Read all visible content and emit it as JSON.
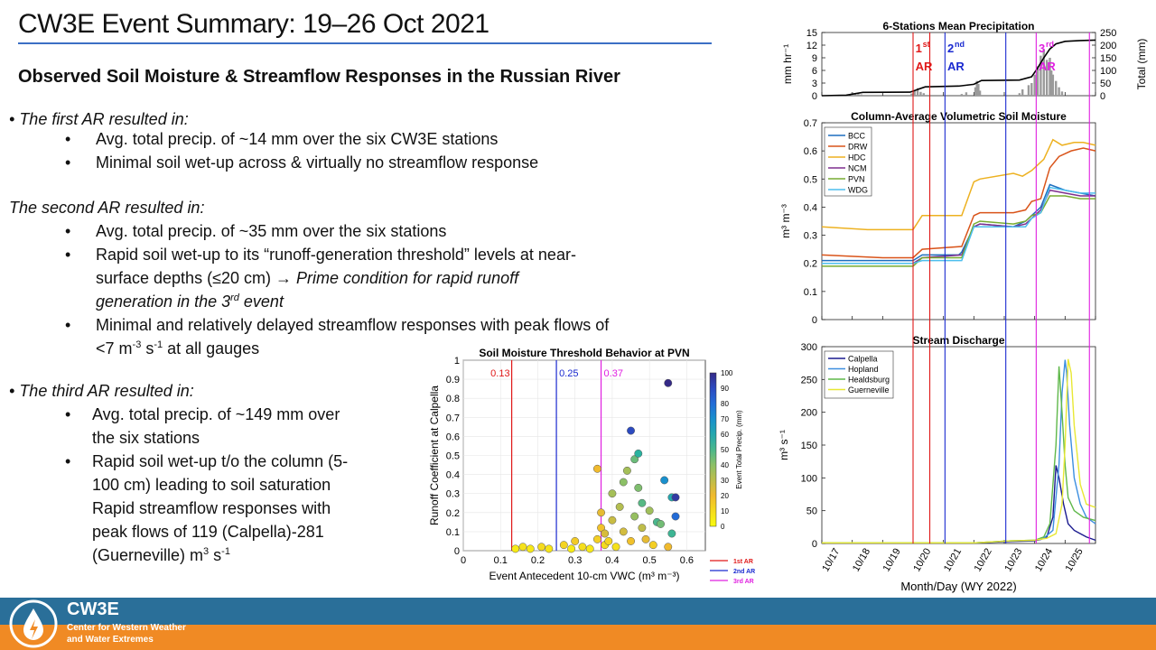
{
  "slide": {
    "title": "CW3E Event Summary: 19–26 Oct 2021",
    "subtitle": "Observed Soil Moisture & Streamflow Responses in the Russian River"
  },
  "bullets": {
    "first": {
      "head": "The first AR resulted in:",
      "items": [
        "Avg. total precip. of ~14 mm over the six CW3E stations",
        "Minimal soil wet-up across & virtually no streamflow response"
      ]
    },
    "second": {
      "head": "The second AR resulted in:",
      "item1": "Avg. total precip. of ~35 mm over the six stations",
      "item2_a": "Rapid soil wet-up to its “runoff-generation threshold” levels at near-",
      "item2_b": "surface depths (≤20 cm) → ",
      "item2_c": "Prime condition for rapid runoff",
      "item2_d": "generation in the 3",
      "item2_sup": "rd",
      "item2_e": " event",
      "item3_a": "Minimal and relatively delayed streamflow responses with peak flows of",
      "item3_b": "<7 m",
      "item3_sup1": "-3",
      "item3_c": " s",
      "item3_sup2": "-1",
      "item3_d": " at all gauges"
    },
    "third": {
      "head": "The third AR resulted in:",
      "item1_a": "Avg. total precip. of ~149 mm over",
      "item1_b": "the six stations",
      "item2_a": "Rapid soil wet-up t/o the column (5-",
      "item2_b": "100 cm) leading to soil saturation",
      "item2_c": "Rapid streamflow responses with",
      "item2_d": "peak flows of 119 (Calpella)-281",
      "item2_e": "(Guerneville) m",
      "item2_sup": "3",
      "item2_f": " s",
      "item2_sup2": "-1"
    }
  },
  "colors": {
    "ar1": "#e01818",
    "ar2": "#1a2ad0",
    "ar3": "#e020e0"
  },
  "ar_labels": {
    "ar1_num": "1",
    "ar1_sup": "st",
    "ar2_num": "2",
    "ar2_sup": "nd",
    "ar3_num": "3",
    "ar3_sup": "rd",
    "ar": "AR"
  },
  "chart_data": [
    {
      "type": "area",
      "title": "6-Stations Mean Precipitation",
      "ylabel": "mm hr⁻¹",
      "y2label": "Total (mm)",
      "ylim": [
        0,
        15
      ],
      "yticks": [
        "0",
        "3",
        "6",
        "9",
        "12",
        "15"
      ],
      "y2lim": [
        0,
        250
      ],
      "y2ticks": [
        "0",
        "50",
        "100",
        "150",
        "200",
        "250"
      ],
      "xlim": [
        0,
        9
      ],
      "bars": [
        [
          0.85,
          0.3
        ],
        [
          1.0,
          0.8
        ],
        [
          1.1,
          0.6
        ],
        [
          1.2,
          0.4
        ],
        [
          1.3,
          0.3
        ],
        [
          2.95,
          0.5
        ],
        [
          3.05,
          1.3
        ],
        [
          3.15,
          1.8
        ],
        [
          3.25,
          0.9
        ],
        [
          3.35,
          0.6
        ],
        [
          4.6,
          0.4
        ],
        [
          4.75,
          0.8
        ],
        [
          5.05,
          2.0
        ],
        [
          5.1,
          3.5
        ],
        [
          5.15,
          2.8
        ],
        [
          5.2,
          1.2
        ],
        [
          6.5,
          0.6
        ],
        [
          6.6,
          1.5
        ],
        [
          6.8,
          2.5
        ],
        [
          6.9,
          3.0
        ],
        [
          7.0,
          5.0
        ],
        [
          7.1,
          7.0
        ],
        [
          7.2,
          9.5
        ],
        [
          7.3,
          11.0
        ],
        [
          7.4,
          8.5
        ],
        [
          7.5,
          9.0
        ],
        [
          7.55,
          6.0
        ],
        [
          7.6,
          5.0
        ],
        [
          7.7,
          3.5
        ],
        [
          7.8,
          2.0
        ],
        [
          7.9,
          1.0
        ]
      ],
      "total_x": [
        0,
        0.8,
        1.35,
        2.9,
        3.4,
        4.5,
        5.0,
        5.25,
        6.5,
        6.9,
        7.1,
        7.3,
        7.5,
        7.7,
        8.0,
        8.5,
        9.0
      ],
      "total_y": [
        0,
        2,
        13,
        14,
        35,
        38,
        45,
        60,
        62,
        75,
        110,
        150,
        185,
        205,
        215,
        218,
        220
      ]
    },
    {
      "type": "line",
      "title": "Column-Average Volumetric Soil Moisture",
      "ylabel": "m³ m⁻³",
      "ylim": [
        0,
        0.7
      ],
      "yticks": [
        "0",
        "0.1",
        "0.2",
        "0.3",
        "0.4",
        "0.5",
        "0.6",
        "0.7"
      ],
      "xlim": [
        0,
        9
      ],
      "series": [
        {
          "name": "BCC",
          "color": "#1f6fbf",
          "x": [
            0,
            3.0,
            3.3,
            4.5,
            4.6,
            5.0,
            5.2,
            6.3,
            6.7,
            6.9,
            7.2,
            7.5,
            8.0,
            8.5,
            9.0
          ],
          "y": [
            0.21,
            0.21,
            0.23,
            0.23,
            0.24,
            0.33,
            0.34,
            0.33,
            0.35,
            0.37,
            0.4,
            0.48,
            0.46,
            0.45,
            0.44
          ]
        },
        {
          "name": "DRW",
          "color": "#d9541a",
          "x": [
            0,
            2.0,
            3.0,
            3.3,
            4.6,
            5.0,
            5.2,
            6.3,
            6.7,
            6.9,
            7.2,
            7.5,
            7.8,
            8.2,
            8.6,
            9.0
          ],
          "y": [
            0.23,
            0.22,
            0.22,
            0.25,
            0.26,
            0.37,
            0.38,
            0.38,
            0.39,
            0.42,
            0.43,
            0.54,
            0.58,
            0.6,
            0.61,
            0.6
          ]
        },
        {
          "name": "HDC",
          "color": "#edb120",
          "x": [
            0,
            1.5,
            3.0,
            3.3,
            4.6,
            5.0,
            5.2,
            6.3,
            6.6,
            6.9,
            7.3,
            7.6,
            7.9,
            8.3,
            8.6,
            9.0
          ],
          "y": [
            0.33,
            0.32,
            0.32,
            0.37,
            0.37,
            0.49,
            0.5,
            0.52,
            0.51,
            0.53,
            0.57,
            0.64,
            0.62,
            0.63,
            0.63,
            0.62
          ]
        },
        {
          "name": "NCM",
          "color": "#7e2f8e",
          "x": [
            0,
            3.0,
            3.3,
            4.6,
            5.0,
            5.2,
            6.3,
            6.7,
            6.9,
            7.2,
            7.5,
            8.0,
            8.5,
            9.0
          ],
          "y": [
            0.2,
            0.2,
            0.22,
            0.23,
            0.33,
            0.34,
            0.33,
            0.34,
            0.36,
            0.39,
            0.46,
            0.45,
            0.44,
            0.44
          ]
        },
        {
          "name": "PVN",
          "color": "#77ac30",
          "x": [
            0,
            3.0,
            3.3,
            4.6,
            5.0,
            5.2,
            6.3,
            6.7,
            6.9,
            7.2,
            7.5,
            8.0,
            8.5,
            9.0
          ],
          "y": [
            0.19,
            0.19,
            0.22,
            0.22,
            0.34,
            0.35,
            0.34,
            0.35,
            0.37,
            0.38,
            0.44,
            0.44,
            0.43,
            0.43
          ]
        },
        {
          "name": "WDG",
          "color": "#4dbeee",
          "x": [
            0,
            3.0,
            3.3,
            4.6,
            5.0,
            5.2,
            6.3,
            6.7,
            6.9,
            7.2,
            7.5,
            8.0,
            8.5,
            9.0
          ],
          "y": [
            0.2,
            0.2,
            0.21,
            0.21,
            0.33,
            0.33,
            0.33,
            0.33,
            0.36,
            0.38,
            0.47,
            0.46,
            0.45,
            0.45
          ]
        }
      ]
    },
    {
      "type": "line",
      "title": "Stream Discharge",
      "ylabel": "m³ s⁻¹",
      "xlabel": "Month/Day (WY 2022)",
      "ylim": [
        0,
        300
      ],
      "yticks": [
        "0",
        "50",
        "100",
        "150",
        "200",
        "250",
        "300"
      ],
      "xlim": [
        0,
        9
      ],
      "xticks": [
        "10/17",
        "10/18",
        "10/19",
        "10/20",
        "10/21",
        "10/22",
        "10/23",
        "10/24",
        "10/25"
      ],
      "series": [
        {
          "name": "Calpella",
          "color": "#1a1a8f",
          "x": [
            0,
            5.0,
            6.2,
            7.0,
            7.2,
            7.4,
            7.6,
            7.7,
            7.8,
            7.95,
            8.1,
            8.3,
            8.5,
            8.7,
            9.0
          ],
          "y": [
            1,
            1,
            3,
            4,
            6,
            10,
            40,
            119,
            100,
            60,
            30,
            20,
            15,
            10,
            5
          ]
        },
        {
          "name": "Hopland",
          "color": "#3d8fe0",
          "x": [
            0,
            5.0,
            6.2,
            7.0,
            7.3,
            7.6,
            7.8,
            7.9,
            8.0,
            8.05,
            8.15,
            8.3,
            8.5,
            8.7,
            9.0
          ],
          "y": [
            1,
            1,
            4,
            5,
            8,
            20,
            120,
            230,
            280,
            260,
            180,
            100,
            60,
            40,
            30
          ]
        },
        {
          "name": "Healdsburg",
          "color": "#5fb84a",
          "x": [
            0,
            5.0,
            6.2,
            7.0,
            7.3,
            7.5,
            7.7,
            7.8,
            7.9,
            8.0,
            8.1,
            8.3,
            8.6,
            9.0
          ],
          "y": [
            1,
            1,
            4,
            5,
            10,
            30,
            150,
            270,
            200,
            120,
            70,
            50,
            40,
            35
          ]
        },
        {
          "name": "Guerneville",
          "color": "#e8e834",
          "x": [
            0,
            5.0,
            6.2,
            7.0,
            7.4,
            7.7,
            7.9,
            8.0,
            8.1,
            8.2,
            8.3,
            8.5,
            8.7,
            9.0
          ],
          "y": [
            1,
            1,
            4,
            5,
            8,
            15,
            60,
            150,
            281,
            260,
            180,
            90,
            60,
            55
          ]
        }
      ]
    },
    {
      "type": "scatter",
      "title": "Soil Moisture Threshold Behavior at PVN",
      "xlabel": "Event Antecedent 10-cm VWC (m³ m⁻³)",
      "ylabel": "Runoff Coefficient at Calpella",
      "xlim": [
        0,
        0.65
      ],
      "ylim": [
        0,
        1
      ],
      "xticks": [
        "0",
        "0.1",
        "0.2",
        "0.3",
        "0.4",
        "0.5",
        "0.6"
      ],
      "yticks": [
        "0",
        "0.1",
        "0.2",
        "0.3",
        "0.4",
        "0.5",
        "0.6",
        "0.7",
        "0.8",
        "0.9",
        "1"
      ],
      "colorbar_label": "Event Total Precip. (mm)",
      "colorbar_ticks": [
        "0",
        "10",
        "20",
        "30",
        "40",
        "50",
        "60",
        "70",
        "80",
        "90",
        "100"
      ],
      "thresholds": [
        {
          "x": 0.13,
          "label": "0.13"
        },
        {
          "x": 0.25,
          "label": "0.25"
        },
        {
          "x": 0.37,
          "label": "0.37"
        }
      ],
      "legend": [
        "1st AR",
        "2nd AR",
        "3rd AR"
      ],
      "points": [
        {
          "x": 0.14,
          "y": 0.01,
          "c": 5
        },
        {
          "x": 0.16,
          "y": 0.02,
          "c": 8
        },
        {
          "x": 0.18,
          "y": 0.01,
          "c": 6
        },
        {
          "x": 0.21,
          "y": 0.02,
          "c": 10
        },
        {
          "x": 0.23,
          "y": 0.01,
          "c": 7
        },
        {
          "x": 0.27,
          "y": 0.03,
          "c": 12
        },
        {
          "x": 0.29,
          "y": 0.01,
          "c": 5
        },
        {
          "x": 0.3,
          "y": 0.05,
          "c": 15
        },
        {
          "x": 0.32,
          "y": 0.02,
          "c": 9
        },
        {
          "x": 0.34,
          "y": 0.01,
          "c": 6
        },
        {
          "x": 0.36,
          "y": 0.43,
          "c": 20
        },
        {
          "x": 0.36,
          "y": 0.06,
          "c": 14
        },
        {
          "x": 0.37,
          "y": 0.12,
          "c": 18
        },
        {
          "x": 0.37,
          "y": 0.2,
          "c": 22
        },
        {
          "x": 0.38,
          "y": 0.03,
          "c": 10
        },
        {
          "x": 0.38,
          "y": 0.09,
          "c": 25
        },
        {
          "x": 0.39,
          "y": 0.05,
          "c": 12
        },
        {
          "x": 0.4,
          "y": 0.16,
          "c": 28
        },
        {
          "x": 0.4,
          "y": 0.3,
          "c": 35
        },
        {
          "x": 0.41,
          "y": 0.02,
          "c": 8
        },
        {
          "x": 0.42,
          "y": 0.23,
          "c": 32
        },
        {
          "x": 0.43,
          "y": 0.36,
          "c": 40
        },
        {
          "x": 0.43,
          "y": 0.1,
          "c": 26
        },
        {
          "x": 0.44,
          "y": 0.42,
          "c": 35
        },
        {
          "x": 0.45,
          "y": 0.63,
          "c": 90
        },
        {
          "x": 0.45,
          "y": 0.05,
          "c": 18
        },
        {
          "x": 0.46,
          "y": 0.48,
          "c": 45
        },
        {
          "x": 0.46,
          "y": 0.18,
          "c": 38
        },
        {
          "x": 0.47,
          "y": 0.51,
          "c": 55
        },
        {
          "x": 0.47,
          "y": 0.33,
          "c": 42
        },
        {
          "x": 0.48,
          "y": 0.12,
          "c": 30
        },
        {
          "x": 0.48,
          "y": 0.25,
          "c": 48
        },
        {
          "x": 0.49,
          "y": 0.06,
          "c": 22
        },
        {
          "x": 0.5,
          "y": 0.21,
          "c": 36
        },
        {
          "x": 0.51,
          "y": 0.03,
          "c": 14
        },
        {
          "x": 0.52,
          "y": 0.15,
          "c": 50
        },
        {
          "x": 0.53,
          "y": 0.14,
          "c": 44
        },
        {
          "x": 0.54,
          "y": 0.37,
          "c": 70
        },
        {
          "x": 0.55,
          "y": 0.88,
          "c": 100
        },
        {
          "x": 0.56,
          "y": 0.28,
          "c": 60
        },
        {
          "x": 0.56,
          "y": 0.09,
          "c": 52
        },
        {
          "x": 0.57,
          "y": 0.18,
          "c": 80
        },
        {
          "x": 0.57,
          "y": 0.28,
          "c": 95
        },
        {
          "x": 0.55,
          "y": 0.02,
          "c": 20
        }
      ]
    }
  ],
  "footer": {
    "logo": "CW3E",
    "line1": "Center for Western Weather",
    "line2": "and Water Extremes"
  }
}
